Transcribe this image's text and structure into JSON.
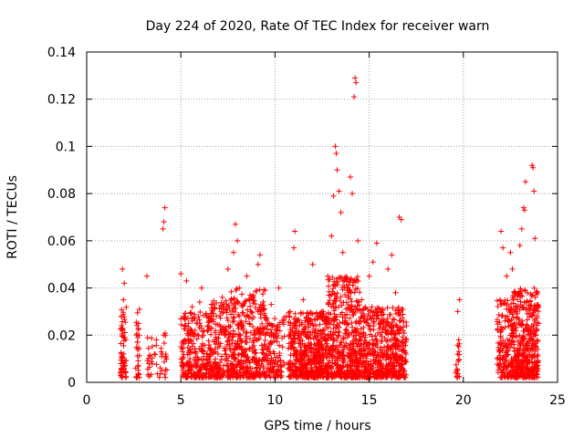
{
  "chart_data": {
    "type": "scatter",
    "title": "Day 224 of 2020, Rate Of TEC Index for receiver warn",
    "xlabel": "GPS time / hours",
    "ylabel": "ROTI / TECUs",
    "xlim": [
      0,
      25
    ],
    "ylim": [
      0,
      0.14
    ],
    "x_ticks": [
      "0",
      "5",
      "10",
      "15",
      "20",
      "25"
    ],
    "y_ticks": [
      "0",
      "0.02",
      "0.04",
      "0.06",
      "0.08",
      "0.1",
      "0.12",
      "0.14"
    ],
    "grid": true,
    "legend": "none",
    "marker": "+",
    "marker_color": "#ff0000",
    "series": [
      {
        "points": [
          [
            1.8,
            0.004
          ],
          [
            1.85,
            0.012
          ],
          [
            1.9,
            0.022
          ],
          [
            1.95,
            0.035
          ],
          [
            2.0,
            0.042
          ],
          [
            1.9,
            0.048
          ],
          [
            2.0,
            0.008
          ],
          [
            1.85,
            0.028
          ],
          [
            2.6,
            0.006
          ],
          [
            2.7,
            0.014
          ],
          [
            2.75,
            0.025
          ],
          [
            2.8,
            0.031
          ],
          [
            2.65,
            0.02
          ],
          [
            3.2,
            0.045
          ],
          [
            3.3,
            0.008
          ],
          [
            3.6,
            0.012
          ],
          [
            3.7,
            0.018
          ],
          [
            4.0,
            0.005
          ],
          [
            4.05,
            0.065
          ],
          [
            4.1,
            0.068
          ],
          [
            4.15,
            0.074
          ],
          [
            4.1,
            0.02
          ],
          [
            4.2,
            0.012
          ],
          [
            5.0,
            0.046
          ],
          [
            5.1,
            0.01
          ],
          [
            5.2,
            0.018
          ],
          [
            5.3,
            0.043
          ],
          [
            5.4,
            0.025
          ],
          [
            5.5,
            0.014
          ],
          [
            5.6,
            0.032
          ],
          [
            5.8,
            0.008
          ],
          [
            6.0,
            0.034
          ],
          [
            6.1,
            0.04
          ],
          [
            6.2,
            0.02
          ],
          [
            6.4,
            0.012
          ],
          [
            6.6,
            0.028
          ],
          [
            6.8,
            0.006
          ],
          [
            6.9,
            0.018
          ],
          [
            7.2,
            0.036
          ],
          [
            7.4,
            0.022
          ],
          [
            7.5,
            0.048
          ],
          [
            7.6,
            0.014
          ],
          [
            7.8,
            0.055
          ],
          [
            7.9,
            0.067
          ],
          [
            8.0,
            0.06
          ],
          [
            8.1,
            0.04
          ],
          [
            8.2,
            0.025
          ],
          [
            8.3,
            0.012
          ],
          [
            8.5,
            0.045
          ],
          [
            8.7,
            0.03
          ],
          [
            8.9,
            0.02
          ],
          [
            9.1,
            0.05
          ],
          [
            9.2,
            0.054
          ],
          [
            9.4,
            0.012
          ],
          [
            9.6,
            0.024
          ],
          [
            9.8,
            0.033
          ],
          [
            10.2,
            0.04
          ],
          [
            10.4,
            0.015
          ],
          [
            10.6,
            0.028
          ],
          [
            10.8,
            0.009
          ],
          [
            11.0,
            0.057
          ],
          [
            11.05,
            0.064
          ],
          [
            11.2,
            0.02
          ],
          [
            11.5,
            0.035
          ],
          [
            12.0,
            0.05
          ],
          [
            12.2,
            0.012
          ],
          [
            12.5,
            0.03
          ],
          [
            12.8,
            0.045
          ],
          [
            13.0,
            0.062
          ],
          [
            13.1,
            0.079
          ],
          [
            13.2,
            0.1
          ],
          [
            13.25,
            0.097
          ],
          [
            13.3,
            0.09
          ],
          [
            13.4,
            0.081
          ],
          [
            13.5,
            0.072
          ],
          [
            13.6,
            0.055
          ],
          [
            13.7,
            0.04
          ],
          [
            13.8,
            0.025
          ],
          [
            14.0,
            0.087
          ],
          [
            14.1,
            0.08
          ],
          [
            14.2,
            0.121
          ],
          [
            14.25,
            0.129
          ],
          [
            14.3,
            0.127
          ],
          [
            14.4,
            0.06
          ],
          [
            14.6,
            0.035
          ],
          [
            14.8,
            0.02
          ],
          [
            15.0,
            0.045
          ],
          [
            15.2,
            0.051
          ],
          [
            15.4,
            0.059
          ],
          [
            15.6,
            0.03
          ],
          [
            15.8,
            0.015
          ],
          [
            16.0,
            0.048
          ],
          [
            16.2,
            0.054
          ],
          [
            16.4,
            0.038
          ],
          [
            16.6,
            0.07
          ],
          [
            16.7,
            0.069
          ],
          [
            16.8,
            0.022
          ],
          [
            19.6,
            0.004
          ],
          [
            19.7,
            0.012
          ],
          [
            19.75,
            0.018
          ],
          [
            19.8,
            0.035
          ],
          [
            19.7,
            0.03
          ],
          [
            21.8,
            0.01
          ],
          [
            22.0,
            0.064
          ],
          [
            22.1,
            0.057
          ],
          [
            22.3,
            0.045
          ],
          [
            22.5,
            0.055
          ],
          [
            22.6,
            0.048
          ],
          [
            22.8,
            0.03
          ],
          [
            23.0,
            0.058
          ],
          [
            23.1,
            0.065
          ],
          [
            23.2,
            0.074
          ],
          [
            23.25,
            0.073
          ],
          [
            23.3,
            0.085
          ],
          [
            23.5,
            0.02
          ],
          [
            23.65,
            0.092
          ],
          [
            23.7,
            0.091
          ],
          [
            23.75,
            0.081
          ],
          [
            23.8,
            0.061
          ],
          [
            23.9,
            0.038
          ],
          [
            24.0,
            0.025
          ]
        ],
        "dense_ranges": [
          {
            "x": [
              1.8,
              2.1
            ],
            "y_max": 0.032,
            "count": 60
          },
          {
            "x": [
              2.6,
              2.8
            ],
            "y_max": 0.03,
            "count": 30
          },
          {
            "x": [
              3.2,
              4.3
            ],
            "y_max": 0.022,
            "count": 40
          },
          {
            "x": [
              5.0,
              6.6
            ],
            "y_max": 0.03,
            "count": 260
          },
          {
            "x": [
              6.6,
              7.6
            ],
            "y_max": 0.035,
            "count": 180
          },
          {
            "x": [
              7.6,
              9.5
            ],
            "y_max": 0.04,
            "count": 380
          },
          {
            "x": [
              9.5,
              10.5
            ],
            "y_max": 0.028,
            "count": 120
          },
          {
            "x": [
              10.7,
              12.8
            ],
            "y_max": 0.03,
            "count": 520
          },
          {
            "x": [
              12.8,
              14.5
            ],
            "y_max": 0.045,
            "count": 480
          },
          {
            "x": [
              14.5,
              17.0
            ],
            "y_max": 0.032,
            "count": 560
          },
          {
            "x": [
              19.6,
              19.8
            ],
            "y_max": 0.02,
            "count": 18
          },
          {
            "x": [
              21.8,
              22.6
            ],
            "y_max": 0.035,
            "count": 160
          },
          {
            "x": [
              22.6,
              24.0
            ],
            "y_max": 0.04,
            "count": 420
          }
        ]
      }
    ]
  }
}
